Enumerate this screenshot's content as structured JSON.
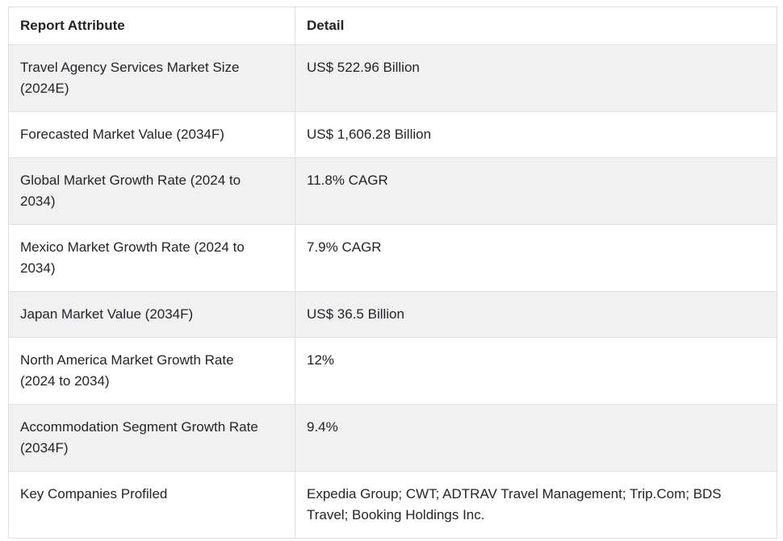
{
  "table": {
    "columns": {
      "attribute_label": "Report Attribute",
      "detail_label": "Detail"
    },
    "rows": [
      {
        "attribute": "Travel Agency Services Market Size (2024E)",
        "detail": "US$ 522.96 Billion"
      },
      {
        "attribute": "Forecasted Market Value (2034F)",
        "detail": "US$ 1,606.28 Billion"
      },
      {
        "attribute": "Global Market Growth Rate (2024 to 2034)",
        "detail": "11.8% CAGR"
      },
      {
        "attribute": "Mexico Market Growth Rate (2024 to 2034)",
        "detail": "7.9% CAGR"
      },
      {
        "attribute": "Japan Market Value (2034F)",
        "detail": "US$ 36.5 Billion"
      },
      {
        "attribute": "North America Market Growth Rate (2024 to 2034)",
        "detail": "12%"
      },
      {
        "attribute": "Accommodation Segment Growth Rate (2034F)",
        "detail": "9.4%"
      },
      {
        "attribute": "Key Companies Profiled",
        "detail": "Expedia Group; CWT; ADTRAV Travel Management; Trip.Com; BDS Travel; Booking Holdings Inc."
      }
    ],
    "colors": {
      "stripe": "#f1f1f2",
      "border": "#dee2e6",
      "text": "#212529",
      "background": "#ffffff"
    }
  }
}
